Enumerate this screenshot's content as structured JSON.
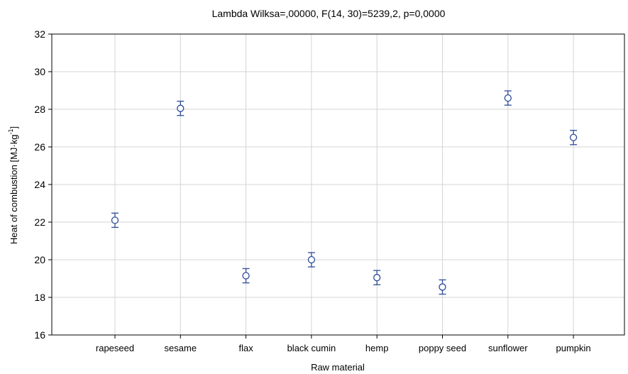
{
  "chart_data": {
    "type": "scatter",
    "title": "Lambda Wilksa=,00000, F(14, 30)=5239,2, p=0,0000",
    "xlabel": "Raw material",
    "ylabel": {
      "prefix": "Heat of combustion [MJ·kg",
      "superscript": "-1",
      "suffix": "]"
    },
    "ylim": [
      16,
      32
    ],
    "yticks": [
      "16",
      "18",
      "20",
      "22",
      "24",
      "26",
      "28",
      "30",
      "32"
    ],
    "grid": true,
    "categories": [
      "rapeseed",
      "sesame",
      "flax",
      "black cumin",
      "hemp",
      "poppy seed",
      "sunflower",
      "pumpkin"
    ],
    "series": [
      {
        "values": [
          22.1,
          28.05,
          19.15,
          20.0,
          19.05,
          18.55,
          28.6,
          26.5
        ],
        "lower": [
          21.72,
          27.67,
          18.77,
          19.62,
          18.67,
          18.17,
          28.22,
          26.12
        ],
        "upper": [
          22.48,
          28.43,
          19.53,
          20.38,
          19.43,
          18.93,
          28.98,
          26.88
        ]
      }
    ],
    "colors": {
      "marker": "#2e4b9a",
      "grid": "#d4d4d4",
      "axis": "#000000"
    }
  }
}
